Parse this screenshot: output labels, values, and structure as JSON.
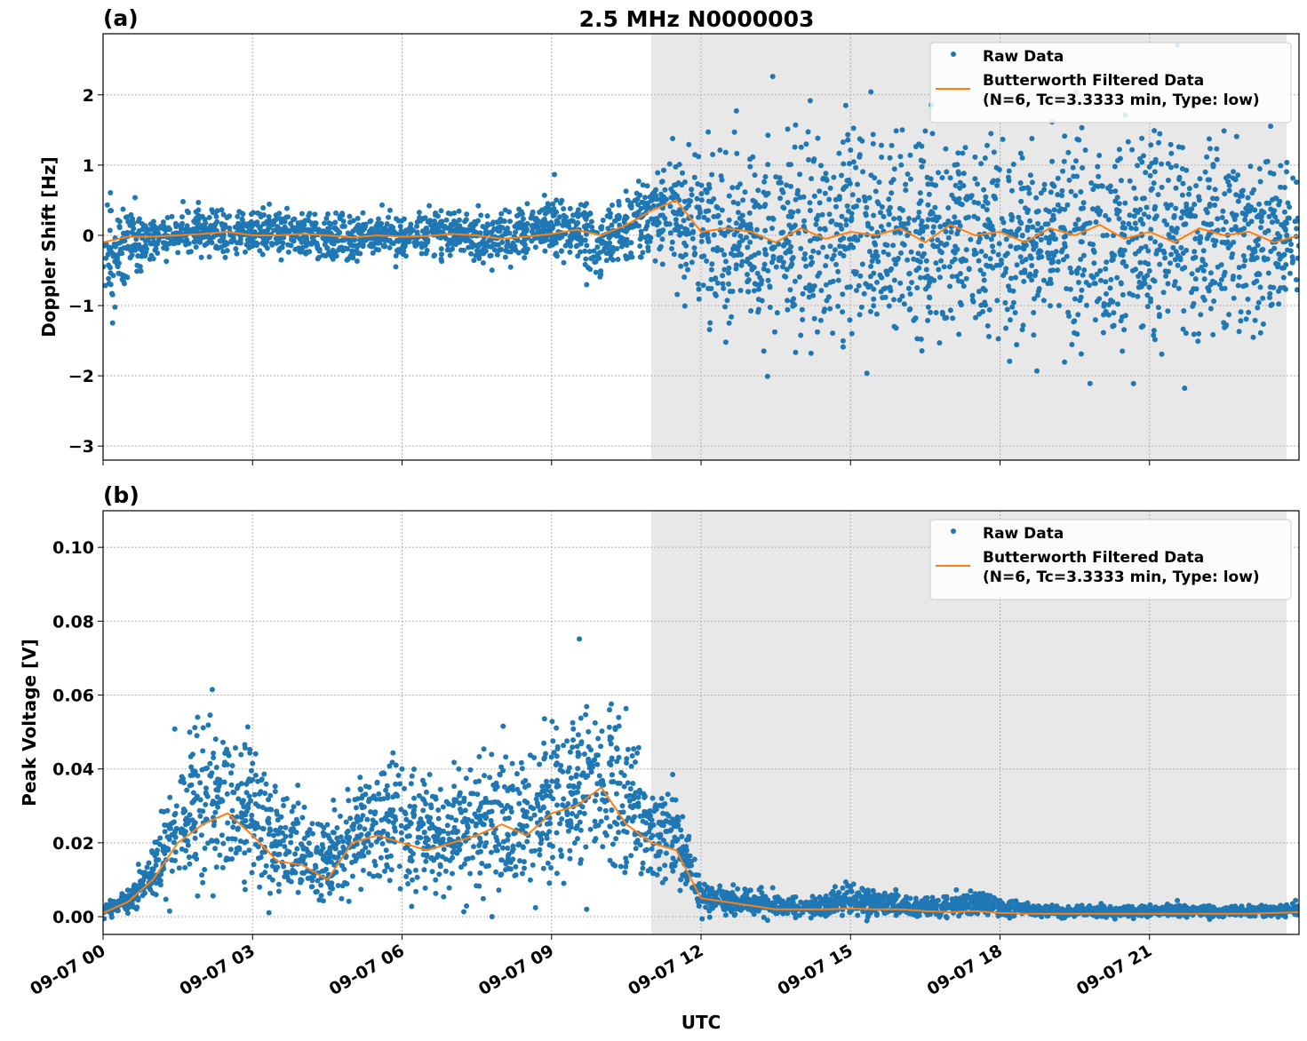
{
  "title": "2.5 MHz N0000003",
  "xlabel": "UTC",
  "x_ticks": [
    "09-07 00",
    "09-07 03",
    "09-07 06",
    "09-07 09",
    "09-07 12",
    "09-07 15",
    "09-07 18",
    "09-07 21"
  ],
  "legend": {
    "raw": "Raw Data",
    "filtered_1": "Butterworth Filtered Data",
    "filtered_2": "(N=6, Tc=3.3333 min, Type: low)"
  },
  "colors": {
    "raw": "#1f77b4",
    "filtered": "#ff7f0e",
    "shade": "#e8e8e8"
  },
  "chart_data": [
    {
      "type": "scatter",
      "panel_label": "(a)",
      "ylabel": "Doppler Shift [Hz]",
      "ylim": [
        -3.2,
        2.87
      ],
      "xlim": [
        "09-07 00:00",
        "09-07 24:00"
      ],
      "y_ticks": [
        "2",
        "1",
        "0",
        "−1",
        "−2",
        "−3"
      ],
      "y_tick_values": [
        2,
        1,
        0,
        -1,
        -2,
        -3
      ],
      "grid": true,
      "legend_position": "top-right",
      "shaded_span": [
        "09-07 11:00",
        "09-07 23:45"
      ],
      "x": [
        "00:00",
        "00:30",
        "01:00",
        "01:30",
        "02:00",
        "02:30",
        "03:00",
        "03:30",
        "04:00",
        "04:30",
        "05:00",
        "05:30",
        "06:00",
        "06:30",
        "07:00",
        "07:30",
        "08:00",
        "08:30",
        "09:00",
        "09:30",
        "10:00",
        "10:30",
        "11:00",
        "11:30",
        "12:00",
        "12:30",
        "13:00",
        "13:30",
        "14:00",
        "14:30",
        "15:00",
        "15:30",
        "16:00",
        "16:30",
        "17:00",
        "17:30",
        "18:00",
        "18:30",
        "19:00",
        "19:30",
        "20:00",
        "20:30",
        "21:00",
        "21:30",
        "22:00",
        "22:30",
        "23:00",
        "23:30",
        "24:00"
      ],
      "raw_low": [
        -1.2,
        -0.7,
        -0.3,
        -0.25,
        -0.25,
        -0.3,
        -0.3,
        -0.3,
        -0.3,
        -0.4,
        -0.35,
        -0.3,
        -0.3,
        -0.3,
        -0.3,
        -0.35,
        -0.35,
        -0.3,
        -0.3,
        -0.4,
        -0.6,
        -0.4,
        -0.3,
        -0.5,
        -1.3,
        -1.5,
        -1.5,
        -1.6,
        -1.5,
        -1.5,
        -1.6,
        -1.5,
        -1.5,
        -1.5,
        -1.5,
        -1.5,
        -1.6,
        -1.5,
        -1.5,
        -1.5,
        -1.5,
        -1.6,
        -1.6,
        -1.5,
        -1.5,
        -1.5,
        -1.4,
        -1.3,
        -1.0
      ],
      "raw_high": [
        0.5,
        0.45,
        0.2,
        0.3,
        0.45,
        0.35,
        0.3,
        0.4,
        0.35,
        0.3,
        0.3,
        0.3,
        0.3,
        0.4,
        0.35,
        0.3,
        0.4,
        0.4,
        0.5,
        0.5,
        0.4,
        0.6,
        0.9,
        1.2,
        1.5,
        1.5,
        1.4,
        1.5,
        1.5,
        1.5,
        1.5,
        1.5,
        1.5,
        1.5,
        1.5,
        1.5,
        1.5,
        1.5,
        1.5,
        1.5,
        1.5,
        1.5,
        1.5,
        1.4,
        1.4,
        1.4,
        1.3,
        1.2,
        1.0
      ],
      "filtered": [
        -0.1,
        -0.02,
        -0.02,
        0,
        0.02,
        0.05,
        0,
        0,
        0.02,
        0,
        -0.03,
        0,
        -0.02,
        -0.01,
        0.02,
        0,
        -0.05,
        -0.02,
        0.02,
        0.08,
        0,
        0.15,
        0.35,
        0.5,
        0.05,
        0.1,
        0.05,
        -0.1,
        0.1,
        -0.05,
        0.05,
        0,
        0.1,
        -0.1,
        0.15,
        0,
        0.05,
        -0.1,
        0.1,
        0,
        0.15,
        -0.05,
        0.05,
        -0.1,
        0.1,
        0,
        0.05,
        -0.1,
        0
      ]
    },
    {
      "type": "scatter",
      "panel_label": "(b)",
      "ylabel": "Peak Voltage [V]",
      "ylim": [
        -0.0048,
        0.1099
      ],
      "xlim": [
        "09-07 00:00",
        "09-07 24:00"
      ],
      "y_ticks": [
        "0.10",
        "0.08",
        "0.06",
        "0.04",
        "0.02",
        "0.00"
      ],
      "y_tick_values": [
        0.1,
        0.08,
        0.06,
        0.04,
        0.02,
        0.0
      ],
      "grid": true,
      "legend_position": "top-right",
      "shaded_span": [
        "09-07 11:00",
        "09-07 23:45"
      ],
      "x": [
        "00:00",
        "00:30",
        "01:00",
        "01:30",
        "02:00",
        "02:30",
        "03:00",
        "03:30",
        "04:00",
        "04:30",
        "05:00",
        "05:30",
        "06:00",
        "06:30",
        "07:00",
        "07:30",
        "08:00",
        "08:30",
        "09:00",
        "09:30",
        "10:00",
        "10:30",
        "11:00",
        "11:30",
        "12:00",
        "12:30",
        "13:00",
        "13:30",
        "14:00",
        "14:30",
        "15:00",
        "15:30",
        "16:00",
        "16:30",
        "17:00",
        "17:30",
        "18:00",
        "18:30",
        "19:00",
        "19:30",
        "20:00",
        "20:30",
        "21:00",
        "21:30",
        "22:00",
        "22:30",
        "23:00",
        "23:30",
        "24:00"
      ],
      "raw_low": [
        0,
        0.001,
        0.004,
        0.007,
        0.008,
        0.009,
        0.007,
        0.005,
        0.005,
        0.004,
        0.006,
        0.007,
        0.006,
        0.005,
        0.006,
        0.007,
        0.008,
        0.008,
        0.01,
        0.012,
        0.013,
        0.012,
        0.01,
        0.009,
        0.001,
        0.0005,
        0,
        0,
        0,
        0,
        0,
        0,
        0,
        0,
        0,
        0,
        0,
        0,
        0,
        0,
        0,
        0,
        0,
        0,
        0,
        0,
        0,
        0,
        0
      ],
      "raw_high": [
        0.003,
        0.008,
        0.02,
        0.045,
        0.055,
        0.055,
        0.045,
        0.035,
        0.03,
        0.025,
        0.04,
        0.045,
        0.045,
        0.04,
        0.04,
        0.045,
        0.045,
        0.045,
        0.05,
        0.055,
        0.06,
        0.055,
        0.035,
        0.035,
        0.01,
        0.009,
        0.008,
        0.006,
        0.005,
        0.006,
        0.009,
        0.007,
        0.006,
        0.005,
        0.006,
        0.008,
        0.005,
        0.004,
        0.003,
        0.003,
        0.003,
        0.003,
        0.003,
        0.003,
        0.003,
        0.003,
        0.003,
        0.003,
        0.004
      ],
      "filtered": [
        0.001,
        0.004,
        0.01,
        0.02,
        0.025,
        0.028,
        0.022,
        0.015,
        0.014,
        0.01,
        0.02,
        0.022,
        0.02,
        0.018,
        0.02,
        0.022,
        0.025,
        0.022,
        0.028,
        0.03,
        0.035,
        0.025,
        0.02,
        0.018,
        0.005,
        0.004,
        0.003,
        0.002,
        0.002,
        0.002,
        0.0022,
        0.002,
        0.002,
        0.0015,
        0.0012,
        0.0015,
        0.001,
        0.0008,
        0.0008,
        0.0008,
        0.0008,
        0.0008,
        0.0008,
        0.0008,
        0.0008,
        0.0008,
        0.0008,
        0.001,
        0.0012
      ]
    }
  ]
}
